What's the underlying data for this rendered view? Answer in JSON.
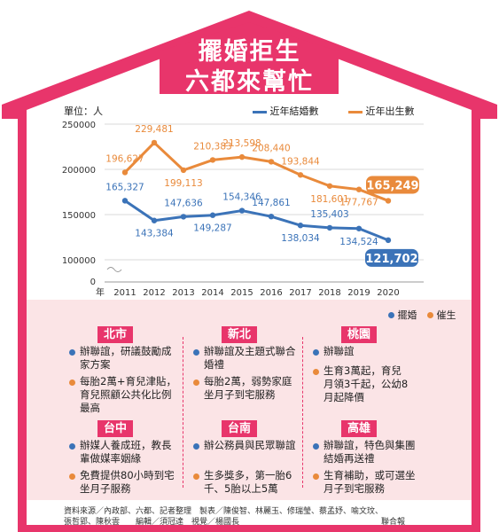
{
  "title_line1": "擺婚拒生",
  "title_line2": "六都來幫忙",
  "colors": {
    "pink": "#e8356b",
    "blue": "#3b73b8",
    "orange": "#e98a3b",
    "panel": "#fbe4e6"
  },
  "chart_data": {
    "type": "line",
    "unit_label": "單位：人",
    "x_prefix": "年",
    "x": [
      "2011",
      "2012",
      "2013",
      "2014",
      "2015",
      "2016",
      "2017",
      "2018",
      "2019",
      "2020"
    ],
    "y_ticks": [
      "250000",
      "200000",
      "150000",
      "100000",
      "0"
    ],
    "series": [
      {
        "name": "近年結婚數",
        "color": "#3b73b8",
        "values": [
          165327,
          143384,
          147636,
          149287,
          154346,
          147861,
          138034,
          135403,
          134524,
          121702
        ],
        "labels": [
          "165,327",
          "143,384",
          "147,636",
          "149,287",
          "154,346",
          "147,861",
          "138,034",
          "135,403",
          "134,524",
          "121,702"
        ]
      },
      {
        "name": "近年出生數",
        "color": "#e98a3b",
        "values": [
          196627,
          229481,
          199113,
          210383,
          213598,
          208440,
          193844,
          181601,
          177767,
          165249
        ],
        "labels": [
          "196,627",
          "229,481",
          "199,113",
          "210,383",
          "213,598",
          "208,440",
          "193,844",
          "181,601",
          "177,767",
          "165,249"
        ]
      }
    ]
  },
  "legend2": {
    "marriage": "擺婚",
    "birth": "催生"
  },
  "cities": [
    {
      "name": "北市",
      "items": [
        {
          "type": "marriage",
          "text": "辦聯誼，研議鼓勵成家方案"
        },
        {
          "type": "birth",
          "text": "每胎2萬+育兒津貼，育兒照顧公共化比例最高"
        }
      ]
    },
    {
      "name": "新北",
      "items": [
        {
          "type": "marriage",
          "text": "辦聯誼及主題式聯合婚禮"
        },
        {
          "type": "birth",
          "text": "每胎2萬，弱勢家庭坐月子到宅服務"
        }
      ]
    },
    {
      "name": "桃園",
      "items": [
        {
          "type": "marriage",
          "text": "辦聯誼"
        },
        {
          "type": "birth",
          "text": "生育3萬起，育兒月領3千起，公幼8月起降價"
        }
      ]
    },
    {
      "name": "台中",
      "items": [
        {
          "type": "marriage",
          "text": "辦媒人養成班，教長輩做媒率姻緣"
        },
        {
          "type": "birth",
          "text": "免費提供80小時到宅坐月子服務"
        }
      ]
    },
    {
      "name": "台南",
      "items": [
        {
          "type": "marriage",
          "text": "辦公務員與民眾聯誼"
        },
        {
          "type": "birth",
          "text": "生多獎多，第一胎6千、5胎以上5萬"
        }
      ]
    },
    {
      "name": "高雄",
      "items": [
        {
          "type": "marriage",
          "text": "辦聯誼，特色與集團結婚再送禮"
        },
        {
          "type": "birth",
          "text": "生育補助，或可選坐月子到宅服務"
        }
      ]
    }
  ],
  "source_line1": "資料來源／內政部、六都、記者整理　製表／陳俊智、林麗玉、修瑞瑩、蔡孟妤、喻文玟、",
  "source_line2": "張哲郢、陳秋雲　　編輯／須冠達　視覺／楊國長",
  "brand": "聯合報"
}
